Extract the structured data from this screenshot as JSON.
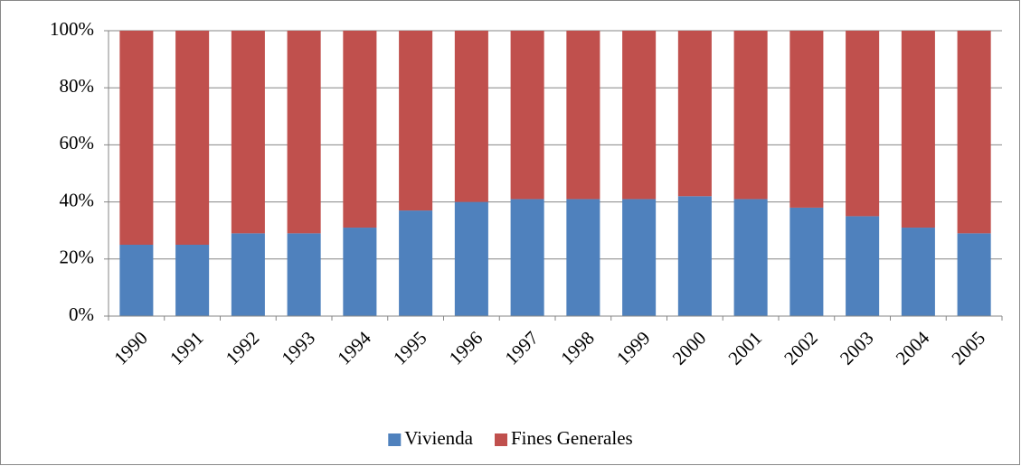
{
  "chart_data": {
    "type": "bar",
    "stacked": true,
    "categories": [
      "1990",
      "1991",
      "1992",
      "1993",
      "1994",
      "1995",
      "1996",
      "1997",
      "1998",
      "1999",
      "2000",
      "2001",
      "2002",
      "2003",
      "2004",
      "2005"
    ],
    "series": [
      {
        "name": "Vivienda",
        "color": "#4f81bd",
        "values": [
          25,
          25,
          29,
          29,
          31,
          37,
          40,
          41,
          41,
          41,
          42,
          41,
          38,
          35,
          31,
          29
        ]
      },
      {
        "name": "Fines Generales",
        "color": "#c0504d",
        "values": [
          75,
          75,
          71,
          71,
          69,
          63,
          60,
          59,
          59,
          59,
          58,
          59,
          62,
          65,
          69,
          71
        ]
      }
    ],
    "ylim": [
      0,
      100
    ],
    "yticks": [
      {
        "value": 0,
        "label": "0%"
      },
      {
        "value": 20,
        "label": "20%"
      },
      {
        "value": 40,
        "label": "40%"
      },
      {
        "value": 60,
        "label": "60%"
      },
      {
        "value": 80,
        "label": "80%"
      },
      {
        "value": 100,
        "label": "100%"
      }
    ],
    "grid": true,
    "legend": "bottom"
  }
}
